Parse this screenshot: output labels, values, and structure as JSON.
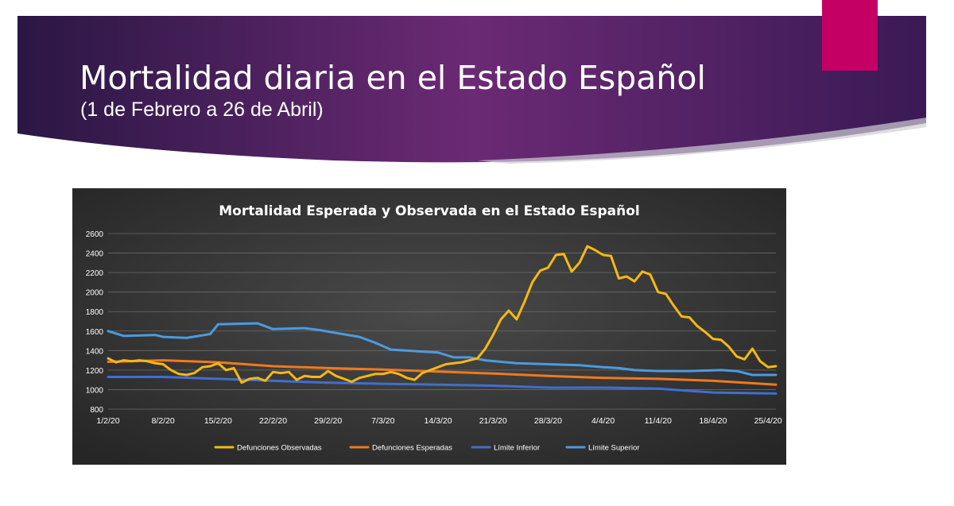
{
  "slide": {
    "title": "Mortalidad diaria en el Estado Español",
    "subtitle": "(1 de Febrero a 26 de Abril)",
    "colors": {
      "banner_dark": "#2a1744",
      "banner_light": "#6b2a74",
      "accent_tab": "#c40065"
    }
  },
  "chart_data": {
    "type": "line",
    "title": "Mortalidad Esperada y Observada en el Estado Español",
    "xlabel": "",
    "ylabel": "",
    "ylim": [
      800,
      2600
    ],
    "yticks": [
      800,
      1000,
      1200,
      1400,
      1600,
      1800,
      2000,
      2200,
      2400,
      2600
    ],
    "x_tick_labels": [
      "1/2/20",
      "8/2/20",
      "15/2/20",
      "22/2/20",
      "29/2/20",
      "7/3/20",
      "14/3/20",
      "21/3/20",
      "28/3/20",
      "4/4/20",
      "11/4/20",
      "18/4/20",
      "25/4/20"
    ],
    "grid": true,
    "legend_position": "bottom",
    "x_start": "1/2/20",
    "x_end": "26/4/20",
    "series": [
      {
        "name": "Defunciones Observadas",
        "color": "#f5b912",
        "x": [
          "1/2/20",
          "2/2/20",
          "3/2/20",
          "4/2/20",
          "5/2/20",
          "6/2/20",
          "7/2/20",
          "8/2/20",
          "9/2/20",
          "10/2/20",
          "11/2/20",
          "12/2/20",
          "13/2/20",
          "14/2/20",
          "15/2/20",
          "16/2/20",
          "17/2/20",
          "18/2/20",
          "19/2/20",
          "20/2/20",
          "21/2/20",
          "22/2/20",
          "23/2/20",
          "24/2/20",
          "25/2/20",
          "26/2/20",
          "27/2/20",
          "28/2/20",
          "29/2/20",
          "1/3/20",
          "2/3/20",
          "3/3/20",
          "4/3/20",
          "5/3/20",
          "6/3/20",
          "7/3/20",
          "8/3/20",
          "9/3/20",
          "10/3/20",
          "11/3/20",
          "12/3/20",
          "13/3/20",
          "14/3/20",
          "15/3/20",
          "16/3/20",
          "17/3/20",
          "18/3/20",
          "19/3/20",
          "20/3/20",
          "21/3/20",
          "22/3/20",
          "23/3/20",
          "24/3/20",
          "25/3/20",
          "26/3/20",
          "27/3/20",
          "28/3/20",
          "29/3/20",
          "30/3/20",
          "31/3/20",
          "1/4/20",
          "2/4/20",
          "3/4/20",
          "4/4/20",
          "5/4/20",
          "6/4/20",
          "7/4/20",
          "8/4/20",
          "9/4/20",
          "10/4/20",
          "11/4/20",
          "12/4/20",
          "13/4/20",
          "14/4/20",
          "15/4/20",
          "16/4/20",
          "17/4/20",
          "18/4/20",
          "19/4/20",
          "20/4/20",
          "21/4/20",
          "22/4/20",
          "23/4/20",
          "24/4/20",
          "25/4/20",
          "26/4/20"
        ],
        "values": [
          1320,
          1280,
          1300,
          1290,
          1300,
          1290,
          1270,
          1260,
          1200,
          1160,
          1150,
          1170,
          1230,
          1240,
          1270,
          1200,
          1220,
          1070,
          1110,
          1120,
          1090,
          1180,
          1170,
          1180,
          1100,
          1140,
          1130,
          1130,
          1190,
          1140,
          1110,
          1080,
          1120,
          1140,
          1160,
          1160,
          1180,
          1160,
          1120,
          1100,
          1170,
          1200,
          1230,
          1260,
          1270,
          1280,
          1300,
          1320,
          1420,
          1560,
          1720,
          1810,
          1720,
          1900,
          2100,
          2220,
          2250,
          2380,
          2390,
          2210,
          2300,
          2470,
          2430,
          2380,
          2370,
          2140,
          2160,
          2110,
          2210,
          2180,
          2000,
          1980,
          1860,
          1750,
          1740,
          1650,
          1590,
          1520,
          1510,
          1440,
          1340,
          1310,
          1420,
          1290,
          1230,
          1240
        ]
      },
      {
        "name": "Defunciones Esperadas",
        "color": "#ee7a1e",
        "x": [
          "1/2/20",
          "8/2/20",
          "15/2/20",
          "22/2/20",
          "29/2/20",
          "7/3/20",
          "14/3/20",
          "21/3/20",
          "28/3/20",
          "4/4/20",
          "11/4/20",
          "18/4/20",
          "26/4/20"
        ],
        "values": [
          1285,
          1300,
          1280,
          1240,
          1220,
          1205,
          1185,
          1165,
          1140,
          1120,
          1110,
          1090,
          1050
        ]
      },
      {
        "name": "Límite Inferior",
        "color": "#3f6fcf",
        "x": [
          "1/2/20",
          "8/2/20",
          "15/2/20",
          "22/2/20",
          "29/2/20",
          "7/3/20",
          "14/3/20",
          "21/3/20",
          "28/3/20",
          "4/4/20",
          "11/4/20",
          "18/4/20",
          "26/4/20"
        ],
        "values": [
          1130,
          1130,
          1110,
          1090,
          1070,
          1060,
          1050,
          1040,
          1020,
          1020,
          1010,
          970,
          960
        ]
      },
      {
        "name": "Límite Superior",
        "color": "#4a9be0",
        "x": [
          "1/2/20",
          "3/2/20",
          "7/2/20",
          "8/2/20",
          "11/2/20",
          "14/2/20",
          "15/2/20",
          "20/2/20",
          "22/2/20",
          "26/2/20",
          "28/2/20",
          "1/3/20",
          "4/3/20",
          "6/3/20",
          "8/3/20",
          "12/3/20",
          "14/3/20",
          "16/3/20",
          "18/3/20",
          "20/3/20",
          "24/3/20",
          "28/3/20",
          "1/4/20",
          "4/4/20",
          "6/4/20",
          "8/4/20",
          "11/4/20",
          "15/4/20",
          "19/4/20",
          "21/4/20",
          "23/4/20",
          "26/4/20"
        ],
        "values": [
          1600,
          1550,
          1560,
          1540,
          1530,
          1570,
          1670,
          1680,
          1620,
          1630,
          1610,
          1580,
          1540,
          1480,
          1410,
          1390,
          1380,
          1330,
          1330,
          1300,
          1270,
          1260,
          1250,
          1230,
          1220,
          1200,
          1190,
          1190,
          1200,
          1190,
          1150,
          1150
        ]
      }
    ]
  }
}
